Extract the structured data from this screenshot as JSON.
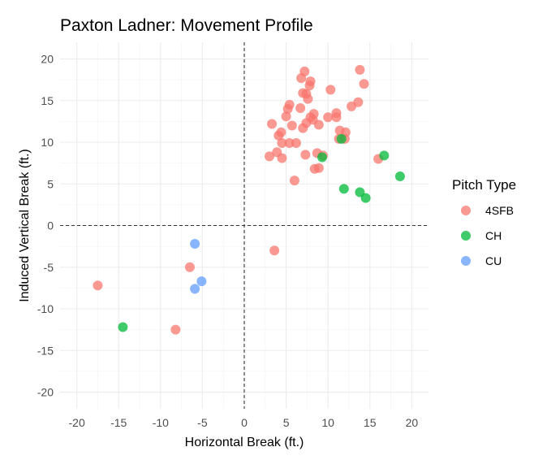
{
  "chart_data": {
    "type": "scatter",
    "title": "Paxton Ladner: Movement Profile",
    "xlabel": "Horizontal Break (ft.)",
    "ylabel": "Induced Vertical Break (ft.)",
    "xlim": [
      -22,
      22
    ],
    "ylim": [
      -22,
      22
    ],
    "xticks": [
      -20,
      -15,
      -10,
      -5,
      0,
      5,
      10,
      15,
      20
    ],
    "yticks": [
      -20,
      -15,
      -10,
      -5,
      0,
      5,
      10,
      15,
      20
    ],
    "grid": true,
    "reference_lines": {
      "x": 0,
      "y": 0,
      "style": "dashed"
    },
    "legend": {
      "title": "Pitch Type",
      "position": "right"
    },
    "series": [
      {
        "name": "4SFB",
        "color": "#F8766D",
        "points": [
          [
            7.2,
            18.5
          ],
          [
            13.8,
            18.7
          ],
          [
            14.3,
            17.0
          ],
          [
            6.8,
            17.7
          ],
          [
            7.9,
            17.3
          ],
          [
            7.8,
            16.8
          ],
          [
            10.3,
            16.3
          ],
          [
            7.0,
            15.9
          ],
          [
            7.4,
            15.8
          ],
          [
            7.6,
            15.2
          ],
          [
            5.4,
            14.5
          ],
          [
            5.2,
            14.0
          ],
          [
            6.7,
            14.1
          ],
          [
            13.6,
            14.8
          ],
          [
            12.8,
            14.3
          ],
          [
            11.0,
            13.5
          ],
          [
            8.3,
            13.4
          ],
          [
            10.0,
            13.0
          ],
          [
            7.9,
            13.0
          ],
          [
            8.2,
            12.7
          ],
          [
            5.0,
            13.1
          ],
          [
            11.0,
            13.0
          ],
          [
            3.3,
            12.2
          ],
          [
            7.4,
            12.3
          ],
          [
            8.9,
            12.1
          ],
          [
            5.7,
            12.0
          ],
          [
            7.0,
            11.7
          ],
          [
            11.4,
            11.4
          ],
          [
            12.1,
            11.2
          ],
          [
            4.4,
            11.2
          ],
          [
            4.1,
            10.8
          ],
          [
            12.0,
            10.4
          ],
          [
            11.3,
            10.4
          ],
          [
            4.5,
            9.9
          ],
          [
            5.4,
            9.9
          ],
          [
            6.2,
            9.9
          ],
          [
            3.9,
            8.8
          ],
          [
            7.3,
            8.5
          ],
          [
            8.7,
            8.7
          ],
          [
            9.4,
            8.4
          ],
          [
            3.0,
            8.3
          ],
          [
            4.5,
            8.1
          ],
          [
            16.0,
            8.0
          ],
          [
            8.9,
            6.9
          ],
          [
            8.4,
            6.8
          ],
          [
            6.0,
            5.4
          ],
          [
            3.6,
            -3.0
          ],
          [
            -6.5,
            -5.0
          ],
          [
            -17.5,
            -7.2
          ],
          [
            -8.2,
            -12.5
          ]
        ]
      },
      {
        "name": "CH",
        "color": "#00BA38",
        "points": [
          [
            11.6,
            10.4
          ],
          [
            9.3,
            8.2
          ],
          [
            16.7,
            8.4
          ],
          [
            18.6,
            5.9
          ],
          [
            11.9,
            4.4
          ],
          [
            13.8,
            4.0
          ],
          [
            14.5,
            3.3
          ],
          [
            -14.5,
            -12.2
          ]
        ]
      },
      {
        "name": "CU",
        "color": "#619CFF",
        "points": [
          [
            -5.9,
            -2.2
          ],
          [
            -5.1,
            -6.7
          ],
          [
            -5.9,
            -7.6
          ]
        ]
      }
    ]
  }
}
